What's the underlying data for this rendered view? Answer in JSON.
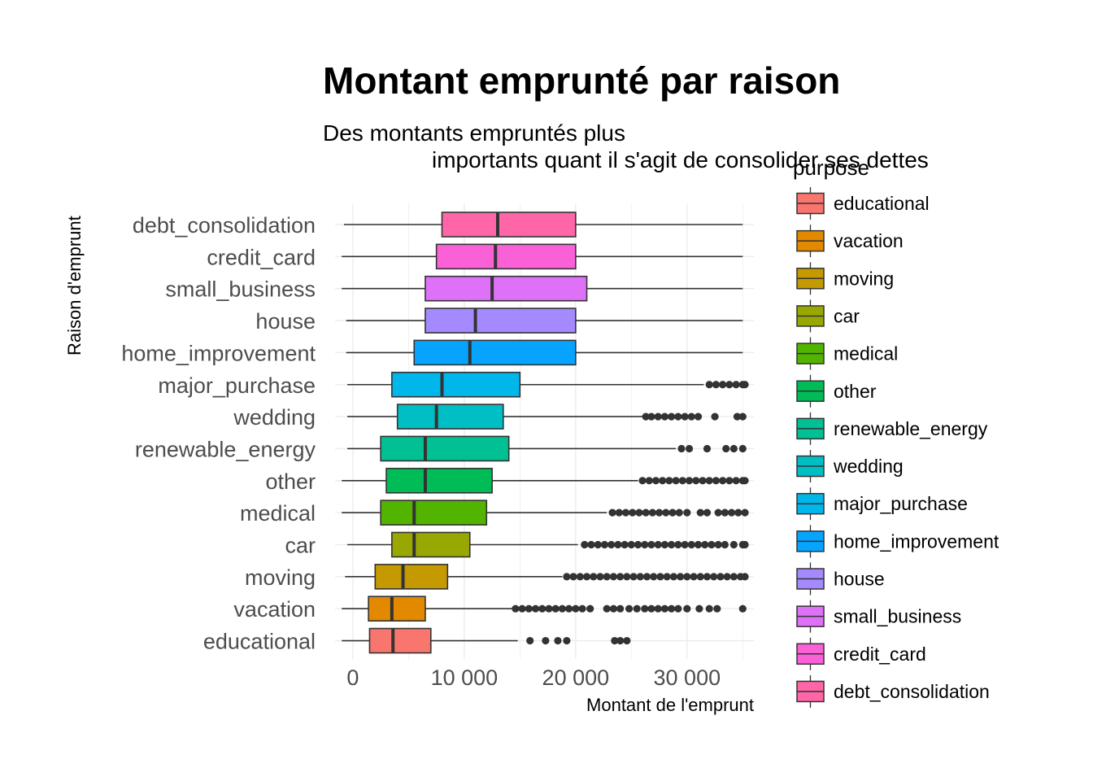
{
  "chart_data": {
    "type": "boxplot",
    "orientation": "horizontal",
    "title": "Montant emprunté par raison",
    "subtitle_lines": [
      "Des montants empruntés plus",
      "importants quant il s'agit de consolider ses dettes"
    ],
    "xlabel": "Montant de l'emprunt",
    "ylabel": "Raison d'emprunt",
    "xlim": [
      -1600,
      36000
    ],
    "x_ticks": [
      0,
      10000,
      20000,
      30000
    ],
    "x_tick_labels": [
      "0",
      "10 000",
      "20 000",
      "30 000"
    ],
    "grid": true,
    "legend": {
      "title": "purpose",
      "position": "right",
      "entries": [
        "educational",
        "vacation",
        "moving",
        "car",
        "medical",
        "other",
        "renewable_energy",
        "wedding",
        "major_purchase",
        "home_improvement",
        "house",
        "small_business",
        "credit_card",
        "debt_consolidation"
      ]
    },
    "series": [
      {
        "name": "educational",
        "color": "#F8766D",
        "whisker_low": -1000,
        "q1": 1500,
        "median": 3600,
        "q3": 7000,
        "whisker_high": 14800,
        "outliers": [
          15900,
          17300,
          18400,
          19200,
          23500,
          24000,
          24600
        ]
      },
      {
        "name": "vacation",
        "color": "#E38900",
        "whisker_low": -1000,
        "q1": 1400,
        "median": 3500,
        "q3": 6500,
        "whisker_high": 14300,
        "outliers": [
          14600,
          15200,
          15800,
          16400,
          17000,
          17600,
          18200,
          18800,
          19400,
          20000,
          20600,
          21300,
          22800,
          23400,
          24000,
          24800,
          25500,
          26200,
          26800,
          27400,
          28000,
          28600,
          29200,
          30000,
          31100,
          32000,
          32700,
          35000
        ]
      },
      {
        "name": "moving",
        "color": "#C49A00",
        "whisker_low": -700,
        "q1": 2000,
        "median": 4500,
        "q3": 8500,
        "whisker_high": 18800,
        "outliers": [
          19200,
          19800,
          20400,
          21000,
          21600,
          22200,
          22800,
          23400,
          24000,
          24600,
          25200,
          25800,
          26400,
          27000,
          27600,
          28200,
          28800,
          29400,
          30000,
          30600,
          31200,
          31800,
          32400,
          33000,
          33600,
          34200,
          34800,
          35200
        ]
      },
      {
        "name": "car",
        "color": "#99A800",
        "whisker_low": -500,
        "q1": 3500,
        "median": 5500,
        "q3": 10500,
        "whisker_high": 20200,
        "outliers": [
          20800,
          21400,
          22000,
          22600,
          23200,
          23800,
          24400,
          25000,
          25600,
          26200,
          26800,
          27400,
          28000,
          28600,
          29200,
          29800,
          30400,
          31000,
          31600,
          32200,
          32800,
          33400,
          34200,
          35000,
          35200
        ]
      },
      {
        "name": "medical",
        "color": "#53B400",
        "whisker_low": -1000,
        "q1": 2500,
        "median": 5500,
        "q3": 12000,
        "whisker_high": 22800,
        "outliers": [
          23300,
          23900,
          24500,
          25100,
          25700,
          26300,
          26900,
          27500,
          28100,
          28700,
          29300,
          30000,
          31200,
          31800,
          32800,
          33400,
          34000,
          34600,
          35200
        ]
      },
      {
        "name": "other",
        "color": "#00BC56",
        "whisker_low": -1000,
        "q1": 3000,
        "median": 6500,
        "q3": 12500,
        "whisker_high": 25600,
        "outliers": [
          26000,
          26600,
          27200,
          27800,
          28400,
          29000,
          29600,
          30200,
          30800,
          31400,
          32000,
          32600,
          33200,
          33800,
          34400,
          35000,
          35200
        ]
      },
      {
        "name": "renewable_energy",
        "color": "#00C094",
        "whisker_low": -500,
        "q1": 2500,
        "median": 6500,
        "q3": 14000,
        "whisker_high": 29000,
        "outliers": [
          29500,
          30200,
          31800,
          33500,
          34200,
          35000
        ]
      },
      {
        "name": "wedding",
        "color": "#00BFC4",
        "whisker_low": -500,
        "q1": 4000,
        "median": 7500,
        "q3": 13500,
        "whisker_high": 26000,
        "outliers": [
          26300,
          26800,
          27400,
          28000,
          28600,
          29200,
          29800,
          30400,
          31000,
          32500,
          34500,
          35000
        ]
      },
      {
        "name": "major_purchase",
        "color": "#00B6EB",
        "whisker_low": -500,
        "q1": 3500,
        "median": 8000,
        "q3": 15000,
        "whisker_high": 31500,
        "outliers": [
          32000,
          32600,
          33200,
          33800,
          34400,
          35000,
          35200
        ]
      },
      {
        "name": "home_improvement",
        "color": "#06A4FF",
        "whisker_low": -600,
        "q1": 5500,
        "median": 10500,
        "q3": 20000,
        "whisker_high": 35000,
        "outliers": []
      },
      {
        "name": "house",
        "color": "#A58AFF",
        "whisker_low": -600,
        "q1": 6500,
        "median": 11000,
        "q3": 20000,
        "whisker_high": 35000,
        "outliers": []
      },
      {
        "name": "small_business",
        "color": "#DF70F8",
        "whisker_low": -1000,
        "q1": 6500,
        "median": 12500,
        "q3": 21000,
        "whisker_high": 35000,
        "outliers": []
      },
      {
        "name": "credit_card",
        "color": "#FB61D7",
        "whisker_low": -1000,
        "q1": 7500,
        "median": 12800,
        "q3": 20000,
        "whisker_high": 35000,
        "outliers": []
      },
      {
        "name": "debt_consolidation",
        "color": "#FF66A8",
        "whisker_low": -800,
        "q1": 8000,
        "median": 13000,
        "q3": 20000,
        "whisker_high": 35000,
        "outliers": []
      }
    ]
  }
}
